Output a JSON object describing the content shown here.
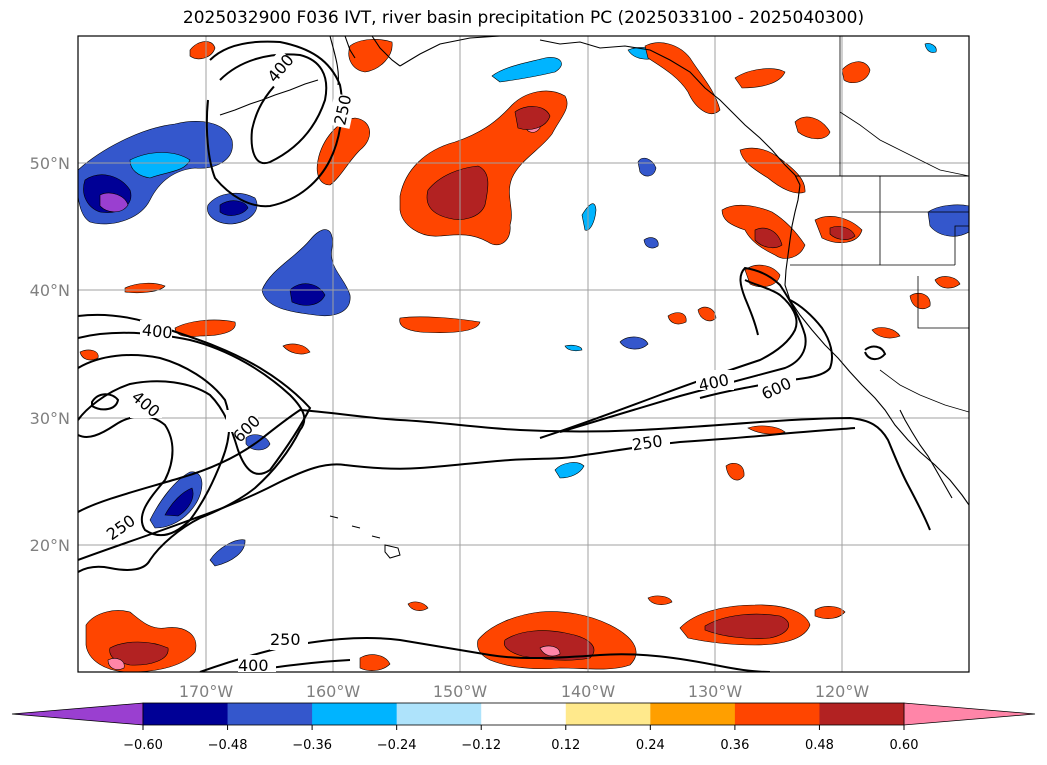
{
  "title": "2025032900 F036 IVT, river basin precipitation PC (2025033100 - 2025040300)",
  "map": {
    "lon_range": [
      180,
      110
    ],
    "lat_range": [
      10,
      60
    ],
    "lon_ticks": [
      {
        "value": 170,
        "label": "170°W"
      },
      {
        "value": 160,
        "label": "160°W"
      },
      {
        "value": 150,
        "label": "150°W"
      },
      {
        "value": 140,
        "label": "140°W"
      },
      {
        "value": 130,
        "label": "130°W"
      },
      {
        "value": 120,
        "label": "120°W"
      }
    ],
    "lat_ticks": [
      {
        "value": 50,
        "label": "50°N"
      },
      {
        "value": 40,
        "label": "40°N"
      },
      {
        "value": 30,
        "label": "30°N"
      },
      {
        "value": 20,
        "label": "20°N"
      }
    ],
    "grid": true,
    "contour_labels": [
      {
        "text": "400"
      },
      {
        "text": "250"
      },
      {
        "text": "400"
      },
      {
        "text": "400"
      },
      {
        "text": "600"
      },
      {
        "text": "250"
      },
      {
        "text": "250"
      },
      {
        "text": "400"
      },
      {
        "text": "400"
      },
      {
        "text": "600"
      },
      {
        "text": "250"
      }
    ]
  },
  "colorbar": {
    "ticks": [
      "−0.60",
      "−0.48",
      "−0.36",
      "−0.24",
      "−0.12",
      "0.12",
      "0.24",
      "0.36",
      "0.48",
      "0.60"
    ],
    "colors": {
      "under": "#9a3fd0",
      "bins": [
        "#000096",
        "#3457cc",
        "#00b4ff",
        "#aee3fb",
        "#ffffff",
        "#ffe98c",
        "#ff9f00",
        "#ff4500",
        "#b22222"
      ],
      "over": "#ff85a8"
    }
  }
}
